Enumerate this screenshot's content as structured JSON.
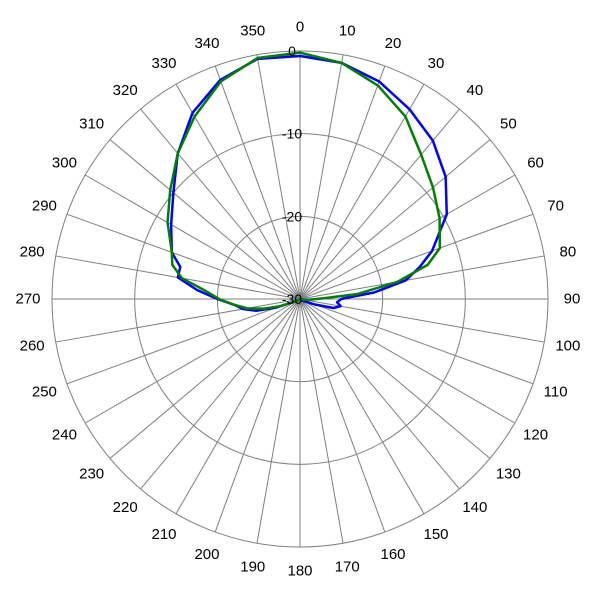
{
  "chart_data": {
    "type": "polar-line",
    "angle_unit": "deg",
    "angle_ticks": [
      "0",
      "10",
      "20",
      "30",
      "40",
      "50",
      "60",
      "70",
      "80",
      "90",
      "100",
      "110",
      "120",
      "130",
      "140",
      "150",
      "160",
      "170",
      "180",
      "190",
      "200",
      "210",
      "220",
      "230",
      "240",
      "250",
      "260",
      "270",
      "280",
      "290",
      "300",
      "310",
      "320",
      "330",
      "340",
      "350"
    ],
    "radial_range": [
      -30,
      0
    ],
    "radial_ticks": [
      "0",
      "-10",
      "-20",
      "-30"
    ],
    "grid": true,
    "series": [
      {
        "color": "#0000ff",
        "points": [
          [
            0,
            -0.6
          ],
          [
            10,
            -1
          ],
          [
            20,
            -2
          ],
          [
            30,
            -3.5
          ],
          [
            40,
            -5
          ],
          [
            50,
            -7
          ],
          [
            60,
            -9.5
          ],
          [
            70,
            -13
          ],
          [
            75,
            -15
          ],
          [
            80,
            -17
          ],
          [
            85,
            -21
          ],
          [
            88,
            -24
          ],
          [
            90,
            -25
          ],
          [
            95,
            -25.5
          ],
          [
            100,
            -25
          ],
          [
            105,
            -25.8
          ],
          [
            110,
            -28
          ],
          [
            120,
            -29.5
          ],
          [
            150,
            -30
          ],
          [
            180,
            -30
          ],
          [
            210,
            -30
          ],
          [
            240,
            -29.5
          ],
          [
            250,
            -27
          ],
          [
            255,
            -24.5
          ],
          [
            260,
            -23
          ],
          [
            265,
            -22
          ],
          [
            270,
            -20
          ],
          [
            275,
            -17.5
          ],
          [
            280,
            -15
          ],
          [
            285,
            -15
          ],
          [
            290,
            -13.5
          ],
          [
            300,
            -12
          ],
          [
            310,
            -10
          ],
          [
            320,
            -7
          ],
          [
            330,
            -4
          ],
          [
            340,
            -1.8
          ],
          [
            350,
            -0.5
          ]
        ]
      },
      {
        "color": "#008000",
        "points": [
          [
            0,
            -0.2
          ],
          [
            10,
            -1
          ],
          [
            20,
            -2.5
          ],
          [
            30,
            -4.5
          ],
          [
            40,
            -7.2
          ],
          [
            50,
            -9
          ],
          [
            60,
            -10.5
          ],
          [
            70,
            -12
          ],
          [
            75,
            -14
          ],
          [
            80,
            -18
          ],
          [
            85,
            -23
          ],
          [
            88,
            -27
          ],
          [
            90,
            -28
          ],
          [
            95,
            -29
          ],
          [
            100,
            -29.5
          ],
          [
            120,
            -30
          ],
          [
            150,
            -30
          ],
          [
            180,
            -30
          ],
          [
            210,
            -30
          ],
          [
            240,
            -29.5
          ],
          [
            250,
            -27.5
          ],
          [
            255,
            -25.5
          ],
          [
            260,
            -23.5
          ],
          [
            265,
            -22
          ],
          [
            270,
            -20.2
          ],
          [
            275,
            -18.5
          ],
          [
            280,
            -15.5
          ],
          [
            285,
            -14
          ],
          [
            290,
            -13.5
          ],
          [
            300,
            -11.5
          ],
          [
            310,
            -9.5
          ],
          [
            320,
            -7
          ],
          [
            330,
            -4.5
          ],
          [
            340,
            -2
          ],
          [
            350,
            -0.4
          ]
        ]
      }
    ]
  }
}
